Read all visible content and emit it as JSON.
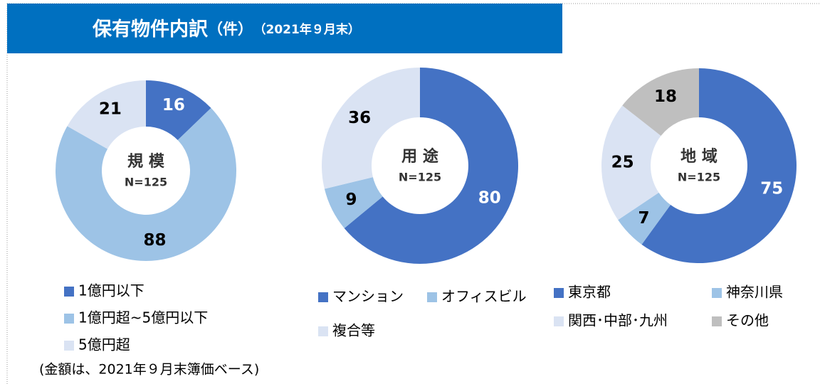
{
  "header": {
    "title": "保有物件内訳",
    "unit": "（件）",
    "date": "（2021年９月末）"
  },
  "footnote": "(金額は、2021年９月末簿価ベース)",
  "chart_data": [
    {
      "type": "donut",
      "center_label": "規 模",
      "center_sublabel": "N=125",
      "categories": [
        "1億円以下",
        "1億円超~5億円以下",
        "5億円超"
      ],
      "values": [
        16,
        88,
        21
      ],
      "colors": [
        "#4472c4",
        "#9dc3e6",
        "#dae3f3"
      ],
      "label_colors": [
        "#ffffff",
        "#000000",
        "#000000"
      ]
    },
    {
      "type": "donut",
      "center_label": "用 途",
      "center_sublabel": "N=125",
      "categories": [
        "マンション",
        "オフィスビル",
        "複合等"
      ],
      "values": [
        80,
        9,
        36
      ],
      "colors": [
        "#4472c4",
        "#9dc3e6",
        "#dae3f3"
      ],
      "label_colors": [
        "#ffffff",
        "#000000",
        "#000000"
      ]
    },
    {
      "type": "donut",
      "center_label": "地 域",
      "center_sublabel": "N=125",
      "categories": [
        "東京都",
        "神奈川県",
        "関西･中部･九州",
        "その他"
      ],
      "values": [
        75,
        7,
        25,
        18
      ],
      "colors": [
        "#4472c4",
        "#9dc3e6",
        "#dae3f3",
        "#bfbfbf"
      ],
      "label_colors": [
        "#ffffff",
        "#000000",
        "#000000",
        "#000000"
      ]
    }
  ]
}
